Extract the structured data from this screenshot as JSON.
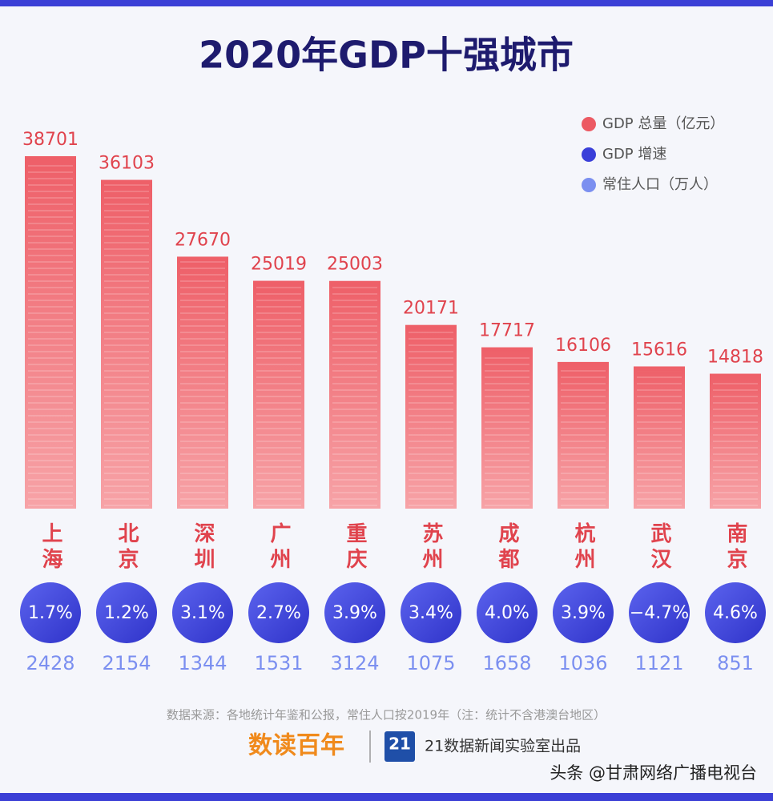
{
  "chart_data": {
    "type": "bar",
    "title": "2020年GDP十强城市",
    "categories": [
      "上海",
      "北京",
      "深圳",
      "广州",
      "重庆",
      "苏州",
      "成都",
      "杭州",
      "武汉",
      "南京"
    ],
    "series": [
      {
        "name": "GDP 总量（亿元）",
        "color": "#ec5a63",
        "values": [
          38701,
          36103,
          27670,
          25019,
          25003,
          20171,
          17717,
          16106,
          15616,
          14818
        ]
      },
      {
        "name": "GDP 增速",
        "color": "#3a3fd9",
        "values": [
          1.7,
          1.2,
          3.1,
          2.7,
          3.9,
          3.4,
          4.0,
          3.9,
          -4.7,
          4.6
        ],
        "value_labels": [
          "1.7%",
          "1.2%",
          "3.1%",
          "2.7%",
          "3.9%",
          "3.4%",
          "4.0%",
          "3.9%",
          "−4.7%",
          "4.6%"
        ]
      },
      {
        "name": "常住人口（万人）",
        "color": "#7b8ff0",
        "values": [
          2428,
          2154,
          1344,
          1531,
          3124,
          1075,
          1658,
          1036,
          1121,
          851
        ]
      }
    ],
    "note": "数据来源：各地统计年鉴和公报，常住人口按2019年（注：统计不含港澳台地区）",
    "footer": {
      "logo": "数读百年",
      "badge": "21",
      "producer": "21数据新闻实验室出品",
      "watermark": "头条 @甘肃网络广播电视台"
    }
  }
}
